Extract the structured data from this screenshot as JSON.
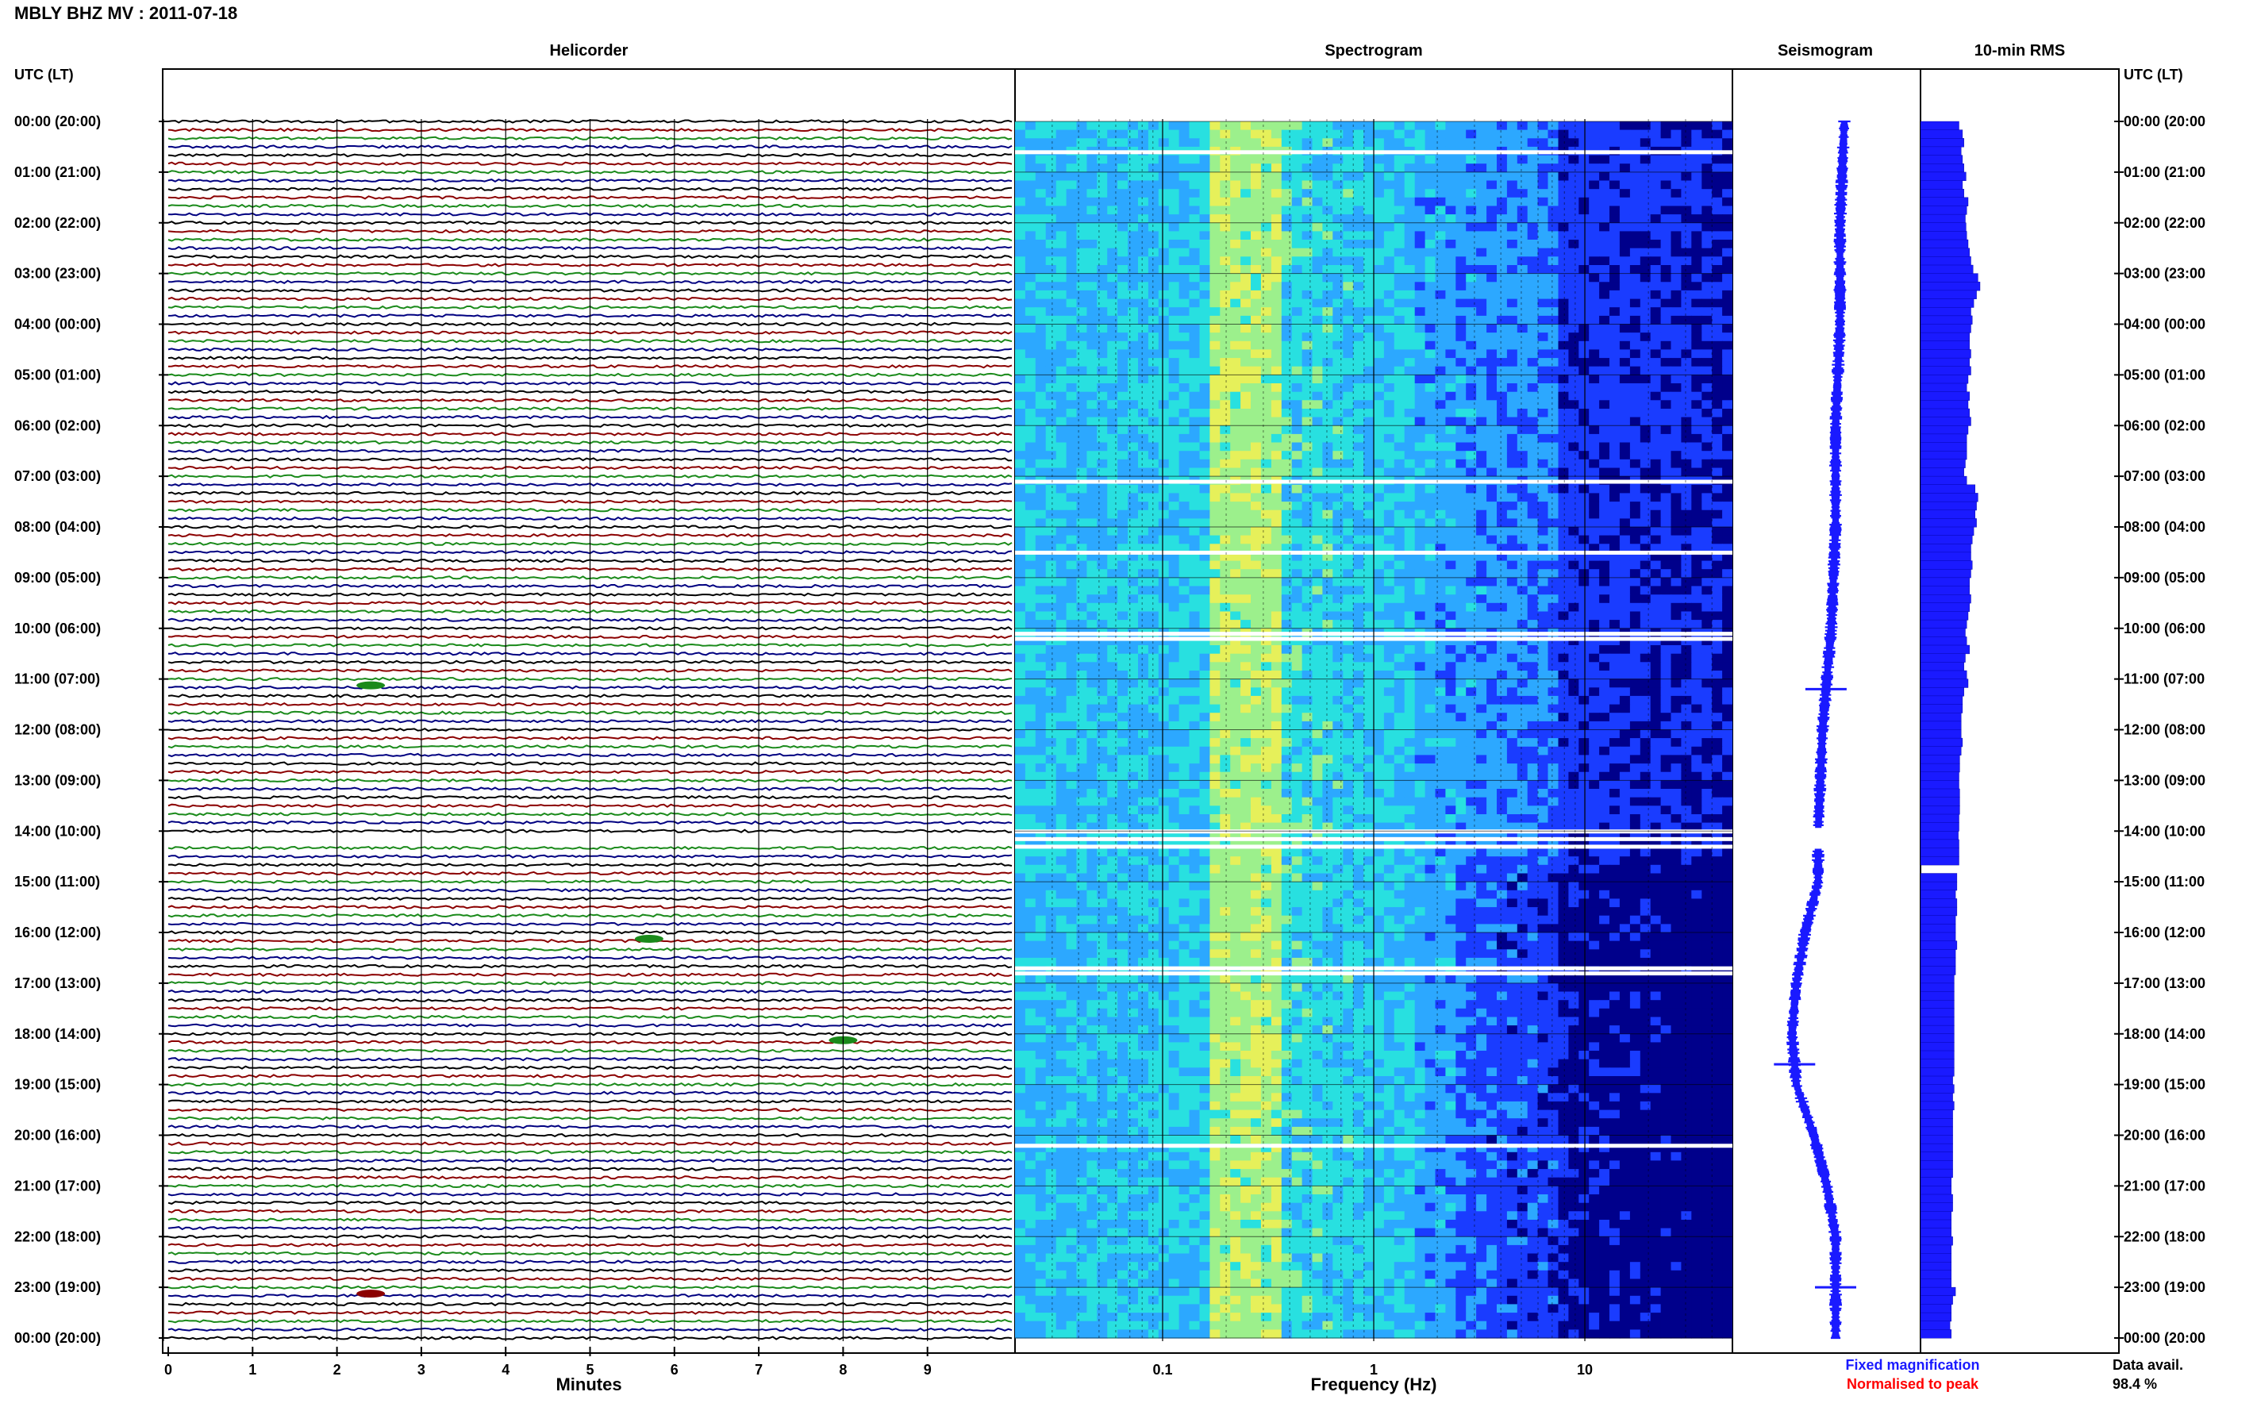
{
  "header": {
    "title": "MBLY BHZ MV : 2011-07-18",
    "utc_label_left": "UTC (LT)",
    "utc_label_right": "UTC (LT)"
  },
  "panels": {
    "helicorder": "Helicorder",
    "spectrogram": "Spectrogram",
    "seismogram": "Seismogram",
    "rms": "10-min RMS"
  },
  "legend": {
    "fixed": "Fixed magnification",
    "normalised": "Normalised to peak",
    "fixed_color": "#1a1aff",
    "normalised_color": "#ff0000"
  },
  "availability": {
    "label": "Data avail.",
    "value": "98.4 %"
  },
  "chart_data": [
    {
      "type": "line",
      "name": "helicorder",
      "title": "Helicorder",
      "xlabel": "Minutes",
      "ylabel": "UTC (LT)",
      "x_ticks": [
        "0",
        "1",
        "2",
        "3",
        "4",
        "5",
        "6",
        "7",
        "8",
        "9"
      ],
      "xlim": [
        0,
        10
      ],
      "y_ticks": [
        "00:00 (20:00)",
        "01:00 (21:00)",
        "02:00 (22:00)",
        "03:00 (23:00)",
        "04:00 (00:00)",
        "05:00 (01:00)",
        "06:00 (02:00)",
        "07:00 (03:00)",
        "08:00 (04:00)",
        "09:00 (05:00)",
        "10:00 (06:00)",
        "11:00 (07:00)",
        "12:00 (08:00)",
        "13:00 (09:00)",
        "14:00 (10:00)",
        "15:00 (11:00)",
        "16:00 (12:00)",
        "17:00 (13:00)",
        "18:00 (14:00)",
        "19:00 (15:00)",
        "20:00 (16:00)",
        "21:00 (17:00)",
        "22:00 (18:00)",
        "23:00 (19:00)",
        "00:00 (20:00)"
      ],
      "trace_colors": [
        "#000000",
        "#8b0000",
        "#1a8a1a",
        "#000080"
      ],
      "traces_per_hour": 6,
      "events": [
        {
          "hour": 11,
          "minute": 2.4,
          "color": "#1a8a1a"
        },
        {
          "hour": 18,
          "minute": 8.0,
          "color": "#1a8a1a"
        },
        {
          "hour": 23,
          "minute": 2.4,
          "color": "#8b0000"
        },
        {
          "hour": 16,
          "minute": 5.7,
          "color": "#1a8a1a"
        }
      ],
      "gaps_hours": [
        14.1
      ]
    },
    {
      "type": "heatmap",
      "name": "spectrogram",
      "title": "Spectrogram",
      "xlabel": "Frequency (Hz)",
      "x_scale": "log",
      "xlim": [
        0.02,
        50
      ],
      "x_ticks": [
        "0.1",
        "1",
        "10"
      ],
      "colormap": [
        "#00008b",
        "#1a3cff",
        "#2ca8ff",
        "#28e0e0",
        "#9cf08c",
        "#e6f05a"
      ],
      "gap_hours": [
        0.6,
        7.1,
        8.5,
        10.1,
        10.2,
        14.0,
        14.15,
        14.3,
        16.7,
        16.8,
        20.2
      ]
    },
    {
      "type": "line",
      "name": "seismogram",
      "title": "Seismogram",
      "series": [
        {
          "y_hours": [
            0,
            2,
            4,
            6,
            8,
            10,
            12,
            14,
            15,
            16,
            17,
            18,
            19,
            20,
            21,
            22,
            23,
            24
          ],
          "offset": [
            0.1,
            0.05,
            0.05,
            0.0,
            0.0,
            -0.05,
            -0.15,
            -0.2,
            -0.2,
            -0.35,
            -0.45,
            -0.5,
            -0.45,
            -0.25,
            -0.1,
            0.0,
            0.0,
            0.0
          ]
        }
      ],
      "spikes_hours": [
        11.2,
        23.0,
        18.6
      ]
    },
    {
      "type": "bar",
      "name": "rms",
      "title": "10-min RMS",
      "orientation": "horizontal",
      "values": [
        0.55,
        0.6,
        0.62,
        0.58,
        0.6,
        0.62,
        0.65,
        0.6,
        0.62,
        0.68,
        0.66,
        0.64,
        0.65,
        0.66,
        0.68,
        0.7,
        0.72,
        0.75,
        0.82,
        0.85,
        0.8,
        0.76,
        0.72,
        0.74,
        0.72,
        0.7,
        0.7,
        0.72,
        0.7,
        0.72,
        0.68,
        0.66,
        0.7,
        0.68,
        0.7,
        0.72,
        0.68,
        0.66,
        0.66,
        0.66,
        0.64,
        0.62,
        0.66,
        0.78,
        0.82,
        0.8,
        0.78,
        0.8,
        0.76,
        0.74,
        0.72,
        0.72,
        0.74,
        0.72,
        0.7,
        0.7,
        0.72,
        0.7,
        0.68,
        0.66,
        0.64,
        0.66,
        0.7,
        0.64,
        0.62,
        0.66,
        0.68,
        0.62,
        0.6,
        0.6,
        0.58,
        0.58,
        0.58,
        0.6,
        0.58,
        0.56,
        0.56,
        0.55,
        0.55,
        0.56,
        0.56,
        0.56,
        0.55,
        0.55,
        0.54,
        0.55,
        0.55,
        0.55,
        0.0,
        0.52,
        0.52,
        0.5,
        0.52,
        0.52,
        0.5,
        0.5,
        0.5,
        0.52,
        0.5,
        0.5,
        0.5,
        0.48,
        0.48,
        0.48,
        0.48,
        0.48,
        0.48,
        0.48,
        0.48,
        0.48,
        0.48,
        0.48,
        0.48,
        0.46,
        0.48,
        0.46,
        0.48,
        0.46,
        0.46,
        0.46,
        0.46,
        0.46,
        0.46,
        0.46,
        0.46,
        0.44,
        0.44,
        0.46,
        0.46,
        0.44,
        0.44,
        0.44,
        0.46,
        0.44,
        0.44,
        0.44,
        0.44,
        0.44,
        0.5,
        0.46,
        0.44,
        0.44,
        0.42,
        0.44
      ]
    }
  ]
}
